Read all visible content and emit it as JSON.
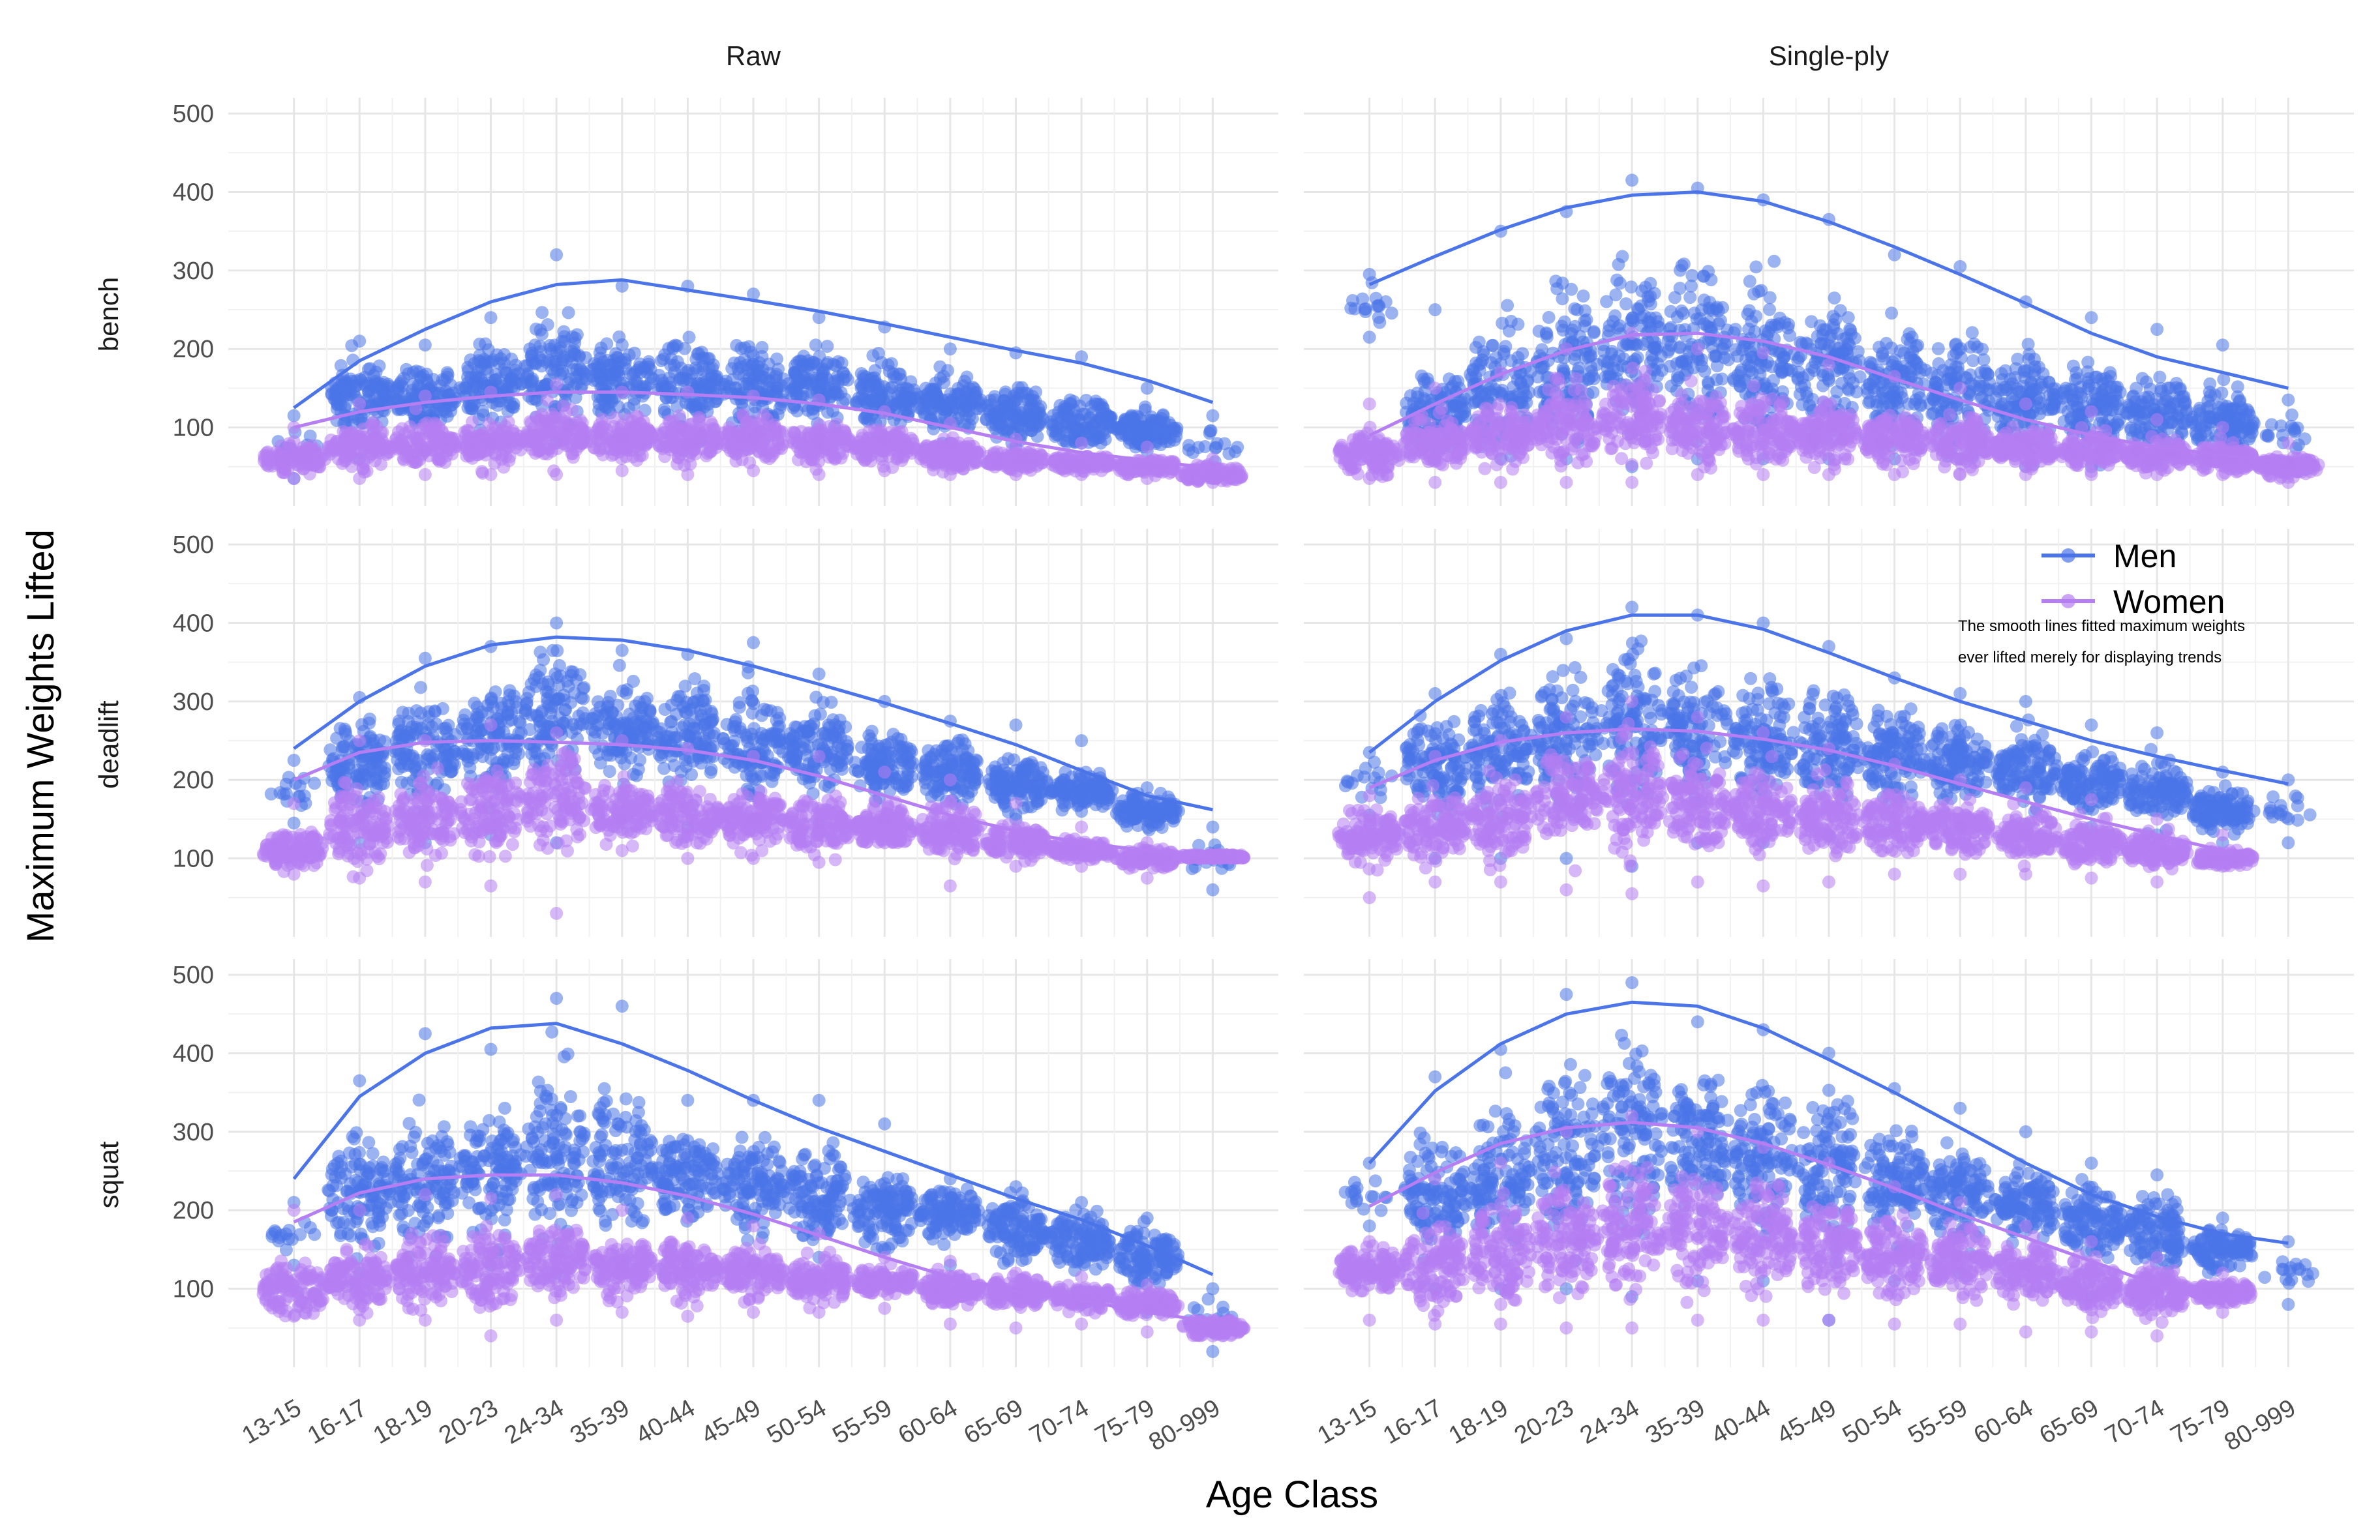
{
  "chart_data": {
    "type": "scatter",
    "title": "",
    "xlabel": "Age Class",
    "ylabel": "Maximum Weights Lifted",
    "facet_columns": [
      "Raw",
      "Single-ply"
    ],
    "facet_rows": [
      "bench",
      "deadlift",
      "squat"
    ],
    "categories": [
      "13-15",
      "16-17",
      "18-19",
      "20-23",
      "24-34",
      "35-39",
      "40-44",
      "45-49",
      "50-54",
      "55-59",
      "60-64",
      "65-69",
      "70-74",
      "75-79",
      "80-999"
    ],
    "y_ticks": [
      100,
      200,
      300,
      400,
      500
    ],
    "ylim": [
      0,
      520
    ],
    "grid": true,
    "legend": {
      "placement": "right, inside middle-right panel",
      "entries": [
        {
          "name": "Men",
          "color": "#4a74e8"
        },
        {
          "name": "Women",
          "color": "#b57ef2"
        }
      ],
      "note_lines": [
        "The smooth lines fitted maximum weights",
        "ever lifted merely for displaying trends"
      ]
    },
    "panels": [
      {
        "equipment": "Raw",
        "lift": "bench",
        "series": [
          {
            "name": "Men",
            "center": [
              null,
              140,
              140,
              155,
              170,
              160,
              155,
              150,
              150,
              140,
              130,
              115,
              105,
              95,
              null
            ],
            "low": [
              null,
              60,
              70,
              80,
              80,
              85,
              80,
              85,
              85,
              85,
              80,
              75,
              80,
              70,
              null
            ],
            "high": [
              115,
              210,
              205,
              240,
              320,
              280,
              280,
              270,
              240,
              228,
              200,
              195,
              190,
              150,
              115
            ],
            "trend": [
              125,
              185,
              225,
              260,
              282,
              288,
              275,
              262,
              248,
              232,
              215,
              198,
              182,
              160,
              132
            ]
          },
          {
            "name": "Women",
            "center": [
              60,
              75,
              80,
              80,
              90,
              85,
              85,
              85,
              80,
              75,
              65,
              58,
              55,
              50,
              40
            ],
            "low": [
              35,
              35,
              40,
              40,
              40,
              45,
              40,
              45,
              40,
              45,
              40,
              40,
              40,
              35,
              30
            ],
            "high": [
              100,
              130,
              140,
              145,
              155,
              145,
              145,
              140,
              135,
              120,
              105,
              85,
              80,
              75,
              60
            ],
            "trend": [
              100,
              120,
              132,
              140,
              145,
              145,
              142,
              138,
              130,
              118,
              100,
              82,
              68,
              58,
              48
            ]
          }
        ]
      },
      {
        "equipment": "Single-ply",
        "lift": "bench",
        "series": [
          {
            "name": "Men",
            "center": [
              null,
              120,
              150,
              180,
              200,
              200,
              190,
              175,
              160,
              145,
              135,
              125,
              115,
              105,
              null
            ],
            "low": [
              null,
              60,
              60,
              60,
              50,
              60,
              60,
              60,
              60,
              60,
              50,
              50,
              55,
              60,
              null
            ],
            "high": [
              295,
              250,
              350,
              375,
              415,
              405,
              390,
              365,
              320,
              305,
              260,
              240,
              225,
              205,
              135
            ],
            "trend": [
              282,
              318,
              352,
              380,
              396,
              400,
              388,
              362,
              330,
              295,
              258,
              220,
              190,
              170,
              150
            ]
          },
          {
            "name": "Women",
            "center": [
              65,
              80,
              90,
              100,
              110,
              100,
              95,
              90,
              85,
              80,
              75,
              70,
              65,
              60,
              50
            ],
            "low": [
              35,
              30,
              30,
              30,
              30,
              40,
              40,
              40,
              40,
              40,
              40,
              40,
              40,
              40,
              30
            ],
            "high": [
              130,
              150,
              170,
              200,
              220,
              200,
              195,
              180,
              165,
              150,
              130,
              120,
              110,
              100,
              80
            ],
            "trend": [
              90,
              130,
              168,
              198,
              218,
              220,
              210,
              190,
              162,
              135,
              110,
              90,
              75,
              65,
              55
            ]
          }
        ]
      },
      {
        "equipment": "Raw",
        "lift": "deadlift",
        "series": [
          {
            "name": "Men",
            "center": [
              null,
              220,
              240,
              260,
              280,
              270,
              255,
              245,
              240,
              220,
              210,
              195,
              185,
              160,
              null
            ],
            "low": [
              null,
              120,
              120,
              130,
              120,
              150,
              140,
              150,
              145,
              150,
              140,
              150,
              160,
              110,
              null
            ],
            "high": [
              225,
              305,
              355,
              370,
              400,
              365,
              360,
              375,
              335,
              300,
              275,
              270,
              250,
              190,
              140
            ],
            "trend": [
              240,
              300,
              345,
              372,
              382,
              378,
              365,
              345,
              322,
              298,
              272,
              245,
              212,
              180,
              162
            ]
          },
          {
            "name": "Women",
            "center": [
              110,
              140,
              150,
              160,
              170,
              160,
              155,
              150,
              140,
              140,
              135,
              120,
              110,
              100,
              100
            ],
            "low": [
              80,
              75,
              70,
              65,
              30,
              110,
              100,
              100,
              95,
              120,
              65,
              90,
              90,
              75,
              100
            ],
            "high": [
              170,
              250,
              250,
              270,
              260,
              250,
              240,
              230,
              230,
              210,
              200,
              170,
              140,
              120,
              100
            ],
            "trend": [
              200,
              235,
              248,
              250,
              248,
              245,
              238,
              225,
              205,
              180,
              155,
              135,
              120,
              110,
              102
            ]
          }
        ]
      },
      {
        "equipment": "Single-ply",
        "lift": "deadlift",
        "series": [
          {
            "name": "Men",
            "center": [
              null,
              220,
              240,
              260,
              270,
              260,
              250,
              240,
              235,
              225,
              215,
              200,
              185,
              160,
              null
            ],
            "low": [
              null,
              100,
              100,
              100,
              90,
              120,
              120,
              130,
              140,
              140,
              130,
              140,
              130,
              120,
              null
            ],
            "high": [
              235,
              310,
              360,
              380,
              420,
              410,
              400,
              370,
              330,
              310,
              300,
              270,
              260,
              210,
              200
            ],
            "trend": [
              235,
              300,
              352,
              390,
              410,
              410,
              392,
              362,
              330,
              300,
              275,
              250,
              230,
              212,
              195
            ]
          },
          {
            "name": "Women",
            "center": [
              130,
              140,
              150,
              170,
              180,
              170,
              160,
              150,
              145,
              140,
              130,
              120,
              110,
              100,
              null
            ],
            "low": [
              50,
              70,
              70,
              60,
              55,
              70,
              65,
              70,
              80,
              80,
              80,
              75,
              70,
              90,
              null
            ],
            "high": [
              180,
              230,
              250,
              280,
              300,
              280,
              260,
              240,
              220,
              200,
              190,
              175,
              150,
              130,
              null
            ],
            "trend": [
              190,
              225,
              248,
              260,
              265,
              262,
              252,
              238,
              218,
              195,
              172,
              150,
              130,
              110,
              null
            ]
          }
        ]
      },
      {
        "equipment": "Raw",
        "lift": "squat",
        "series": [
          {
            "name": "Men",
            "center": [
              null,
              220,
              230,
              250,
              270,
              260,
              245,
              230,
              220,
              200,
              195,
              175,
              160,
              140,
              null
            ],
            "low": [
              null,
              120,
              120,
              130,
              120,
              130,
              130,
              130,
              140,
              150,
              130,
              95,
              80,
              70,
              null
            ],
            "high": [
              210,
              365,
              425,
              405,
              470,
              460,
              340,
              340,
              340,
              310,
              240,
              230,
              210,
              190,
              100
            ],
            "trend": [
              240,
              345,
              400,
              432,
              438,
              412,
              378,
              340,
              305,
              275,
              245,
              215,
              188,
              155,
              118
            ]
          },
          {
            "name": "Women",
            "center": [
              100,
              110,
              120,
              125,
              135,
              130,
              125,
              120,
              110,
              110,
              100,
              95,
              90,
              80,
              50
            ],
            "low": [
              65,
              60,
              60,
              40,
              60,
              70,
              65,
              70,
              70,
              75,
              55,
              50,
              55,
              45,
              40
            ],
            "high": [
              200,
              200,
              220,
              215,
              220,
              200,
              190,
              180,
              170,
              140,
              135,
              120,
              115,
              105,
              60
            ],
            "trend": [
              185,
              222,
              240,
              245,
              245,
              235,
              218,
              195,
              168,
              140,
              115,
              97,
              85,
              70,
              58
            ]
          }
        ]
      },
      {
        "equipment": "Single-ply",
        "lift": "squat",
        "series": [
          {
            "name": "Men",
            "center": [
              null,
              220,
              240,
              280,
              300,
              290,
              270,
              250,
              235,
              220,
              205,
              185,
              170,
              150,
              null
            ],
            "low": [
              null,
              100,
              100,
              100,
              90,
              110,
              110,
              60,
              110,
              120,
              130,
              90,
              100,
              100,
              null
            ],
            "high": [
              260,
              370,
              405,
              475,
              490,
              440,
              430,
              400,
              355,
              330,
              300,
              260,
              245,
              190,
              160
            ],
            "trend": [
              260,
              352,
              412,
              450,
              465,
              460,
              432,
              392,
              350,
              305,
              260,
              220,
              192,
              170,
              158
            ]
          },
          {
            "name": "Women",
            "center": [
              125,
              130,
              140,
              160,
              180,
              175,
              165,
              150,
              140,
              130,
              120,
              105,
              95,
              95,
              null
            ],
            "low": [
              60,
              55,
              55,
              50,
              50,
              60,
              60,
              60,
              55,
              55,
              45,
              45,
              40,
              70,
              null
            ],
            "high": [
              160,
              240,
              260,
              300,
              320,
              300,
              280,
              260,
              230,
              210,
              180,
              160,
              140,
              120,
              null
            ],
            "trend": [
              205,
              248,
              285,
              305,
              312,
              305,
              285,
              258,
              228,
              195,
              165,
              135,
              105,
              80,
              null
            ]
          }
        ]
      }
    ]
  }
}
